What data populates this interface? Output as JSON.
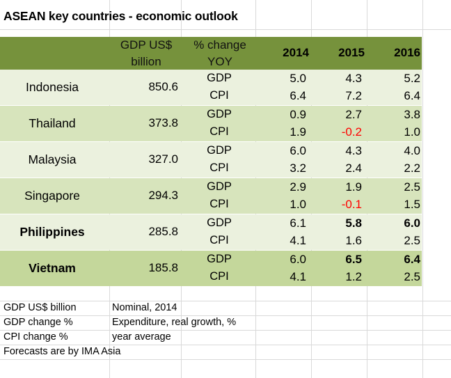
{
  "title": "ASEAN key countries - economic outlook",
  "header": {
    "gdp_usd_line1": "GDP US$",
    "gdp_usd_line2": "billion",
    "pct_change_line1": "% change",
    "pct_change_line2": "YOY",
    "years": [
      "2014",
      "2015",
      "2016"
    ]
  },
  "rows": [
    {
      "country": "Indonesia",
      "gdp_usd": "850.6",
      "gdp_label": "GDP",
      "cpi_label": "CPI",
      "gdp": [
        "5.0",
        "4.3",
        "5.2"
      ],
      "cpi": [
        "6.4",
        "7.2",
        "6.4"
      ]
    },
    {
      "country": "Thailand",
      "gdp_usd": "373.8",
      "gdp_label": "GDP",
      "cpi_label": "CPI",
      "gdp": [
        "0.9",
        "2.7",
        "3.8"
      ],
      "cpi": [
        "1.9",
        "-0.2",
        "1.0"
      ]
    },
    {
      "country": "Malaysia",
      "gdp_usd": "327.0",
      "gdp_label": "GDP",
      "cpi_label": "CPI",
      "gdp": [
        "6.0",
        "4.3",
        "4.0"
      ],
      "cpi": [
        "3.2",
        "2.4",
        "2.2"
      ]
    },
    {
      "country": "Singapore",
      "gdp_usd": "294.3",
      "gdp_label": "GDP",
      "cpi_label": "CPI",
      "gdp": [
        "2.9",
        "1.9",
        "2.5"
      ],
      "cpi": [
        "1.0",
        "-0.1",
        "1.5"
      ]
    },
    {
      "country": "Philippines",
      "gdp_usd": "285.8",
      "gdp_label": "GDP",
      "cpi_label": "CPI",
      "gdp": [
        "6.1",
        "5.8",
        "6.0"
      ],
      "cpi": [
        "4.1",
        "1.6",
        "2.5"
      ]
    },
    {
      "country": "Vietnam",
      "gdp_usd": "185.8",
      "gdp_label": "GDP",
      "cpi_label": "CPI",
      "gdp": [
        "6.0",
        "6.5",
        "6.4"
      ],
      "cpi": [
        "4.1",
        "1.2",
        "2.5"
      ]
    }
  ],
  "notes": [
    {
      "term": "GDP US$ billion",
      "definition": "Nominal, 2014"
    },
    {
      "term": "GDP change %",
      "definition": "Expenditure, real growth, %"
    },
    {
      "term": "CPI change %",
      "definition": "year average"
    },
    {
      "term": "Forecasts are by IMA Asia",
      "definition": ""
    }
  ],
  "colors": {
    "header": "#76923c",
    "band_light": "#ebf1de",
    "band_mid": "#d7e4bc",
    "band_dark": "#c4d79b",
    "negative": "#ff0000",
    "gridline": "#d9d9d9"
  }
}
